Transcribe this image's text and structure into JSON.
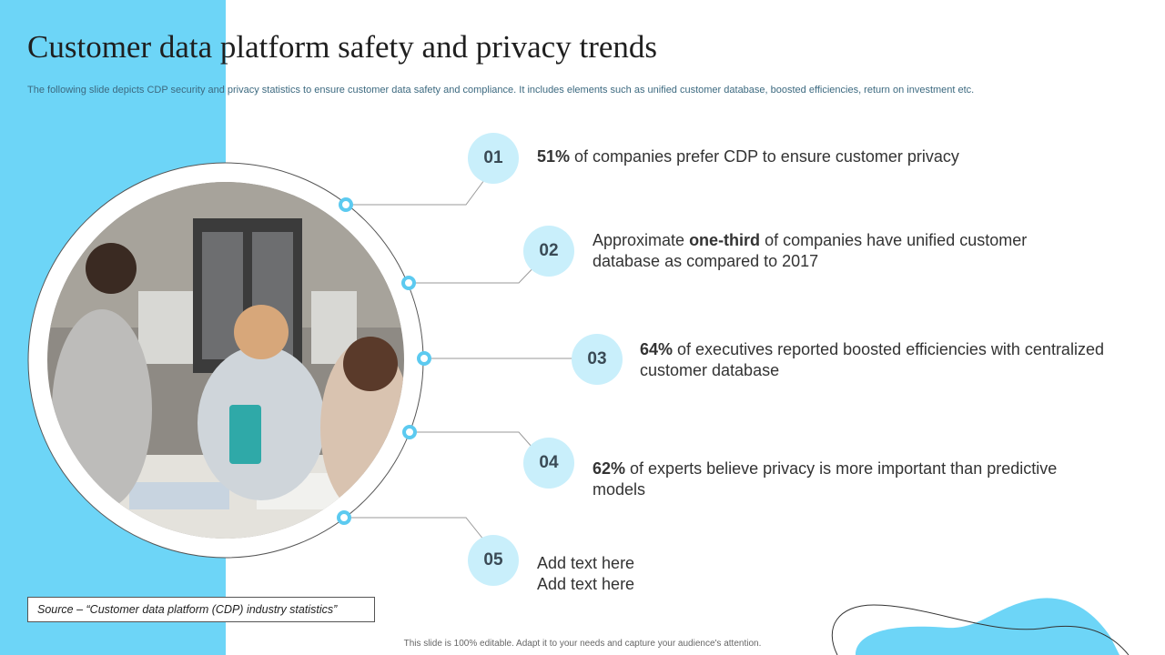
{
  "title": "Customer data platform safety and privacy trends",
  "subtitle": "The following slide depicts CDP security and privacy statistics to ensure customer data safety and compliance. It includes elements such as unified customer database, boosted efficiencies, return on investment etc.",
  "items": [
    {
      "number": "01",
      "bold": "51%",
      "text": " of companies prefer CDP to ensure customer privacy"
    },
    {
      "number": "02",
      "pre": "Approximate ",
      "bold": "one-third",
      "text": " of companies have unified customer database as compared to 2017"
    },
    {
      "number": "03",
      "bold": "64%",
      "text": " of executives reported boosted efficiencies with centralized customer database"
    },
    {
      "number": "04",
      "bold": "62%",
      "text": " of experts believe privacy is more important than predictive models"
    },
    {
      "number": "05",
      "line1": "Add text here",
      "line2": "Add text here"
    }
  ],
  "source": "Source – “Customer data platform (CDP) industry statistics”",
  "footer": "This slide is 100% editable.  Adapt it to your needs and capture your audience's attention.",
  "colors": {
    "accent": "#6dd5f7",
    "badge": "#c9effb",
    "dot": "#5ccaf0"
  }
}
